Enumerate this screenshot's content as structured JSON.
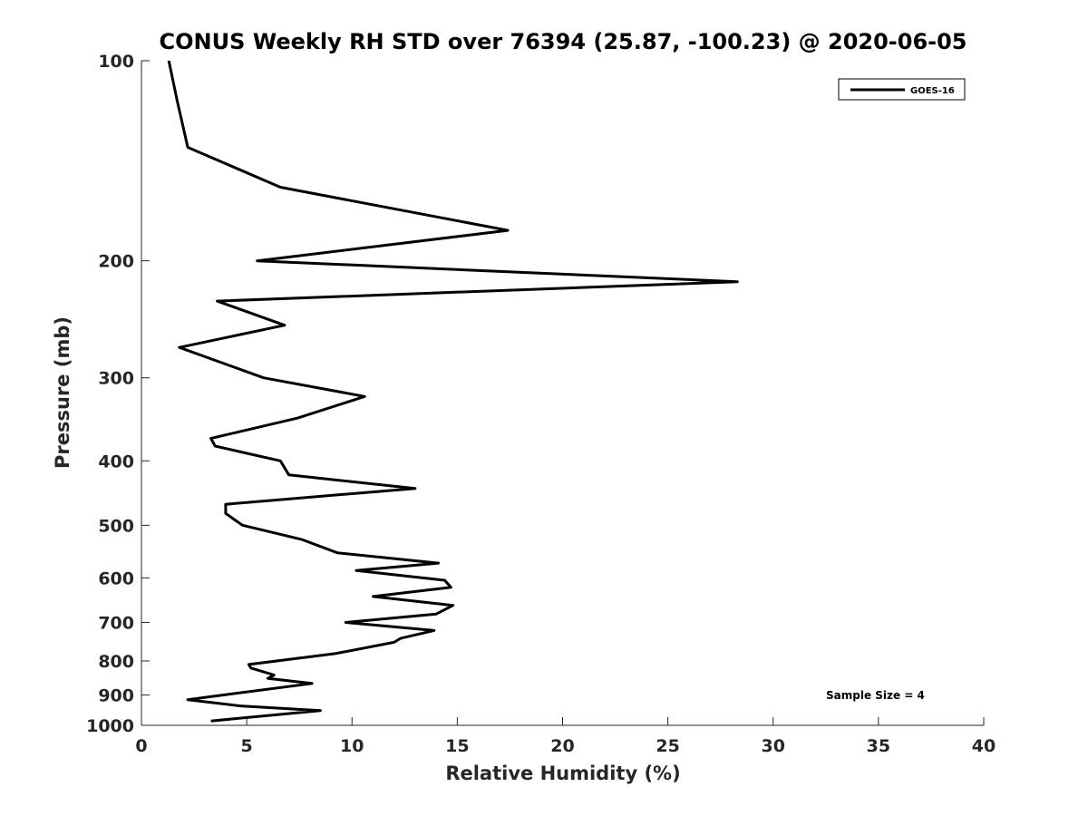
{
  "chart_data": {
    "type": "line",
    "title": "CONUS Weekly RH STD over 76394 (25.87, -100.23) @ 2020-06-05",
    "xlabel": "Relative Humidity (%)",
    "ylabel": "Pressure (mb)",
    "xlim": [
      0,
      40
    ],
    "ylim": [
      100,
      1000
    ],
    "y_scale": "log",
    "y_reversed": true,
    "x_ticks": [
      0,
      5,
      10,
      15,
      20,
      25,
      30,
      35,
      40
    ],
    "y_ticks": [
      100,
      200,
      300,
      400,
      500,
      600,
      700,
      800,
      900,
      1000
    ],
    "grid": false,
    "legend_position": "top-right",
    "annotation": "Sample Size = 4",
    "series": [
      {
        "name": "GOES-16",
        "color": "#000000",
        "points": [
          [
            1.3,
            100
          ],
          [
            1.7,
            115
          ],
          [
            2.2,
            135
          ],
          [
            6.6,
            155
          ],
          [
            17.4,
            180
          ],
          [
            5.5,
            200
          ],
          [
            28.3,
            215
          ],
          [
            3.6,
            230
          ],
          [
            6.8,
            250
          ],
          [
            1.8,
            270
          ],
          [
            5.8,
            300
          ],
          [
            10.6,
            320
          ],
          [
            7.4,
            345
          ],
          [
            3.3,
            370
          ],
          [
            3.5,
            380
          ],
          [
            6.6,
            400
          ],
          [
            7.0,
            420
          ],
          [
            13.0,
            440
          ],
          [
            4.0,
            465
          ],
          [
            4.0,
            480
          ],
          [
            4.8,
            500
          ],
          [
            7.6,
            525
          ],
          [
            9.3,
            550
          ],
          [
            14.1,
            570
          ],
          [
            10.2,
            585
          ],
          [
            14.4,
            605
          ],
          [
            14.7,
            620
          ],
          [
            11.0,
            640
          ],
          [
            14.8,
            660
          ],
          [
            14.0,
            680
          ],
          [
            9.7,
            700
          ],
          [
            13.9,
            720
          ],
          [
            12.3,
            740
          ],
          [
            12.0,
            750
          ],
          [
            9.2,
            780
          ],
          [
            5.1,
            810
          ],
          [
            5.2,
            820
          ],
          [
            6.3,
            840
          ],
          [
            6.0,
            850
          ],
          [
            8.1,
            865
          ],
          [
            3.9,
            900
          ],
          [
            2.2,
            915
          ],
          [
            4.7,
            935
          ],
          [
            8.5,
            950
          ],
          [
            3.3,
            985
          ]
        ]
      }
    ]
  }
}
